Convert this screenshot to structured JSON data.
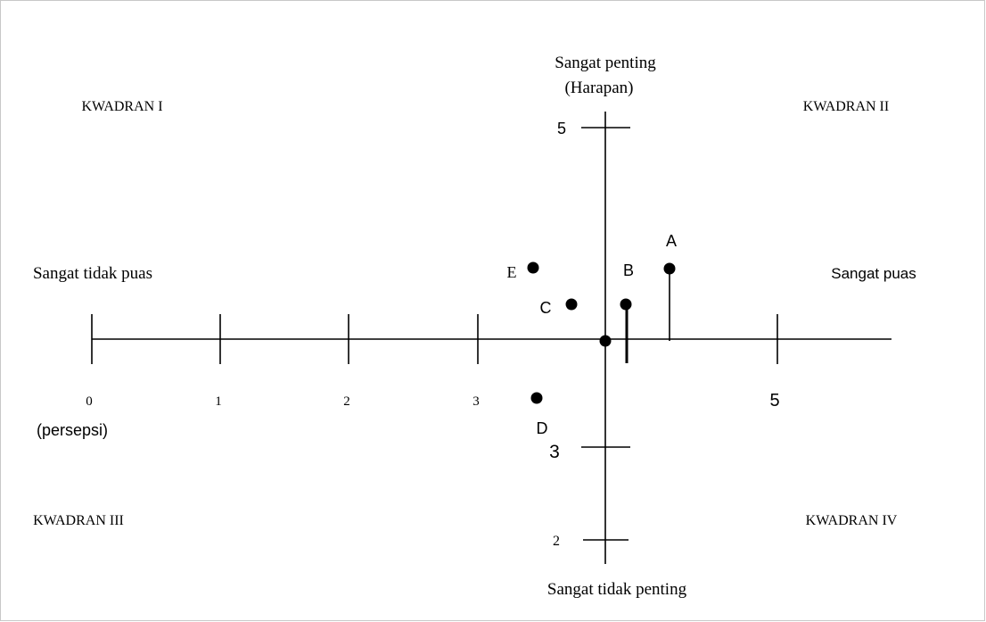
{
  "colors": {
    "ink": "#000000",
    "frame": "#c8c8c8",
    "background": "#ffffff"
  },
  "quadrants": {
    "q1": "KWADRAN I",
    "q2": "KWADRAN II",
    "q3": "KWADRAN III",
    "q4": "KWADRAN IV"
  },
  "y_axis": {
    "top_label_line1": "Sangat penting",
    "top_label_line2": "(Harapan)",
    "bottom_label": "Sangat tidak penting",
    "ticks": [
      "5",
      "3",
      "2"
    ]
  },
  "x_axis": {
    "left_label": "Sangat tidak puas",
    "right_label": "Sangat puas",
    "axis_label": "(persepsi)",
    "ticks": [
      "0",
      "1",
      "2",
      "3",
      "5"
    ]
  },
  "points": [
    {
      "label": "A"
    },
    {
      "label": "B"
    },
    {
      "label": "C"
    },
    {
      "label": "D"
    },
    {
      "label": "E"
    }
  ]
}
